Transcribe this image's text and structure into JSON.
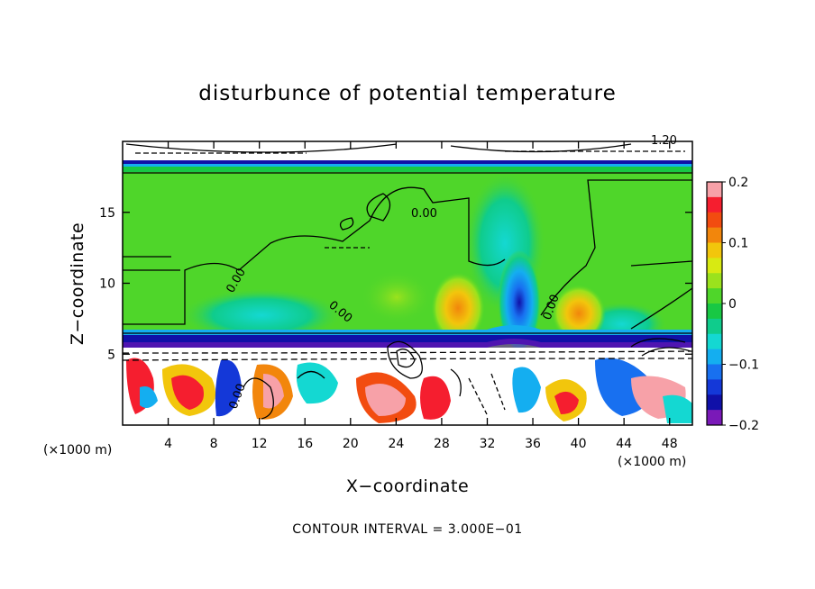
{
  "chart_data": {
    "type": "heatmap",
    "title": "disturbunce of potential temperature",
    "xlabel": "X−coordinate",
    "ylabel": "Z−coordinate",
    "x_unit": "(×1000 m)",
    "z_unit": "(×1000 m)",
    "xlim": [
      0,
      50
    ],
    "ylim": [
      0,
      20
    ],
    "x_ticks": [
      4,
      8,
      12,
      16,
      20,
      24,
      28,
      32,
      36,
      40,
      44,
      48
    ],
    "y_ticks": [
      5,
      10,
      15
    ],
    "colorbar": {
      "range": [
        -0.2,
        0.2
      ],
      "tick_values": [
        0.2,
        0.1,
        0,
        -0.1,
        -0.2
      ],
      "tick_labels": [
        "0.2",
        "0.1",
        "0",
        "−0.1",
        "−0.2"
      ],
      "colors": [
        "#f7a1a8",
        "#f51e2f",
        "#f24c10",
        "#f2860c",
        "#f2c60c",
        "#d8ea12",
        "#9be21d",
        "#4fd62a",
        "#18c844",
        "#0fcc8c",
        "#14d8d2",
        "#14aef0",
        "#1870f0",
        "#1438d8",
        "#1010a8",
        "#7a19b8"
      ]
    },
    "contour_labels": [
      "0.00",
      "0.00",
      "0.00",
      "0.00",
      "0.00",
      "1.20"
    ],
    "contour_interval_text": "CONTOUR INTERVAL = 3.000E−01"
  }
}
